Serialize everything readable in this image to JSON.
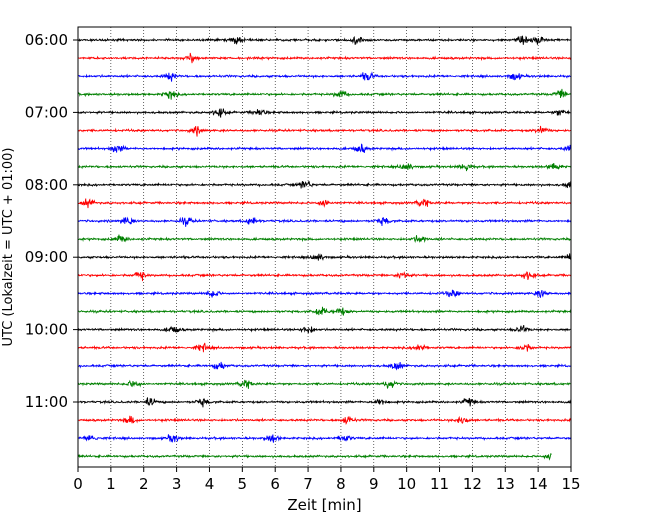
{
  "chart_data": {
    "type": "line",
    "title": "",
    "xlabel": "Zeit  [min]",
    "ylabel": "UTC (Lokalzeit = UTC + 01:00)",
    "xlim": [
      0,
      15
    ],
    "x_ticks": [
      "0",
      "1",
      "2",
      "3",
      "4",
      "5",
      "6",
      "7",
      "8",
      "9",
      "10",
      "11",
      "12",
      "13",
      "14",
      "15"
    ],
    "y_tick_labels": [
      "06:00",
      "07:00",
      "08:00",
      "09:00",
      "10:00",
      "11:00"
    ],
    "trace_interval_minutes": 15,
    "start_time": "06:00",
    "grid": "vertical-dotted",
    "legend": "none",
    "series_colors": [
      "#000000",
      "#ff0000",
      "#0000ff",
      "#008000"
    ],
    "traces": [
      {
        "time": "06:00",
        "color": "#000000",
        "events": [
          4.8,
          8.5,
          13.5,
          14.0
        ]
      },
      {
        "time": "06:15",
        "color": "#ff0000",
        "events": [
          3.5
        ]
      },
      {
        "time": "06:30",
        "color": "#0000ff",
        "events": [
          2.8,
          8.8,
          13.3
        ]
      },
      {
        "time": "06:45",
        "color": "#008000",
        "events": [
          2.8,
          8.0,
          14.7
        ]
      },
      {
        "time": "07:00",
        "color": "#000000",
        "events": [
          4.3,
          5.5,
          14.7
        ]
      },
      {
        "time": "07:15",
        "color": "#ff0000",
        "events": [
          3.6,
          14.1
        ]
      },
      {
        "time": "07:30",
        "color": "#0000ff",
        "events": [
          1.2,
          8.6,
          15.0
        ]
      },
      {
        "time": "07:45",
        "color": "#008000",
        "events": [
          10.0,
          11.8,
          14.5
        ]
      },
      {
        "time": "08:00",
        "color": "#000000",
        "events": [
          6.9,
          15.0
        ]
      },
      {
        "time": "08:15",
        "color": "#ff0000",
        "events": [
          0.3,
          7.5,
          10.5
        ]
      },
      {
        "time": "08:30",
        "color": "#0000ff",
        "events": [
          1.5,
          3.3,
          5.3,
          9.3
        ]
      },
      {
        "time": "08:45",
        "color": "#008000",
        "events": [
          1.3,
          10.4
        ]
      },
      {
        "time": "09:00",
        "color": "#000000",
        "events": [
          7.3,
          15.0
        ]
      },
      {
        "time": "09:15",
        "color": "#ff0000",
        "events": [
          1.9,
          9.9,
          13.7
        ]
      },
      {
        "time": "09:30",
        "color": "#0000ff",
        "events": [
          4.1,
          11.4,
          14.1
        ]
      },
      {
        "time": "09:45",
        "color": "#008000",
        "events": [
          7.4,
          8.0
        ]
      },
      {
        "time": "10:00",
        "color": "#000000",
        "events": [
          2.9,
          7.0,
          13.5
        ]
      },
      {
        "time": "10:15",
        "color": "#ff0000",
        "events": [
          3.8,
          10.4,
          13.6
        ]
      },
      {
        "time": "10:30",
        "color": "#0000ff",
        "events": [
          4.3,
          9.7
        ]
      },
      {
        "time": "10:45",
        "color": "#008000",
        "events": [
          1.7,
          5.1,
          9.5
        ]
      },
      {
        "time": "11:00",
        "color": "#000000",
        "events": [
          2.2,
          3.8,
          9.2,
          11.9
        ]
      },
      {
        "time": "11:15",
        "color": "#ff0000",
        "events": [
          1.6,
          8.2,
          11.7
        ]
      },
      {
        "time": "11:30",
        "color": "#0000ff",
        "events": [
          0.4,
          2.9,
          5.9,
          8.1
        ]
      },
      {
        "time": "11:45",
        "color": "#008000",
        "events": [
          14.4
        ]
      }
    ]
  }
}
